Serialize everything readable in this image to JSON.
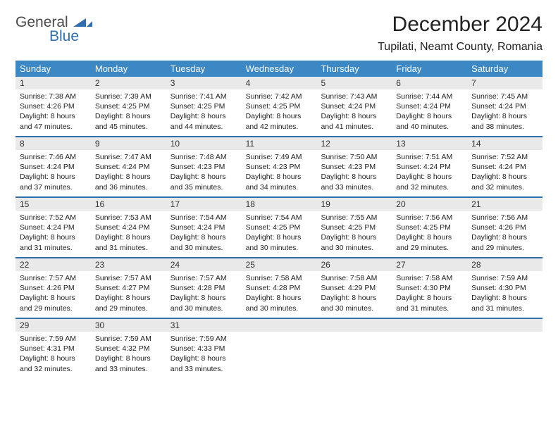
{
  "logo": {
    "general": "General",
    "blue": "Blue"
  },
  "title": "December 2024",
  "location": "Tupilati, Neamt County, Romania",
  "colors": {
    "header_bg": "#3b88c4",
    "border": "#2f6fb0",
    "daynum_bg": "#e9e9e9",
    "text": "#222222",
    "logo_gray": "#4a4a4a",
    "logo_blue": "#2f6fb0"
  },
  "weekdays": [
    "Sunday",
    "Monday",
    "Tuesday",
    "Wednesday",
    "Thursday",
    "Friday",
    "Saturday"
  ],
  "weeks": [
    [
      {
        "n": "1",
        "sr": "Sunrise: 7:38 AM",
        "ss": "Sunset: 4:26 PM",
        "d1": "Daylight: 8 hours",
        "d2": "and 47 minutes."
      },
      {
        "n": "2",
        "sr": "Sunrise: 7:39 AM",
        "ss": "Sunset: 4:25 PM",
        "d1": "Daylight: 8 hours",
        "d2": "and 45 minutes."
      },
      {
        "n": "3",
        "sr": "Sunrise: 7:41 AM",
        "ss": "Sunset: 4:25 PM",
        "d1": "Daylight: 8 hours",
        "d2": "and 44 minutes."
      },
      {
        "n": "4",
        "sr": "Sunrise: 7:42 AM",
        "ss": "Sunset: 4:25 PM",
        "d1": "Daylight: 8 hours",
        "d2": "and 42 minutes."
      },
      {
        "n": "5",
        "sr": "Sunrise: 7:43 AM",
        "ss": "Sunset: 4:24 PM",
        "d1": "Daylight: 8 hours",
        "d2": "and 41 minutes."
      },
      {
        "n": "6",
        "sr": "Sunrise: 7:44 AM",
        "ss": "Sunset: 4:24 PM",
        "d1": "Daylight: 8 hours",
        "d2": "and 40 minutes."
      },
      {
        "n": "7",
        "sr": "Sunrise: 7:45 AM",
        "ss": "Sunset: 4:24 PM",
        "d1": "Daylight: 8 hours",
        "d2": "and 38 minutes."
      }
    ],
    [
      {
        "n": "8",
        "sr": "Sunrise: 7:46 AM",
        "ss": "Sunset: 4:24 PM",
        "d1": "Daylight: 8 hours",
        "d2": "and 37 minutes."
      },
      {
        "n": "9",
        "sr": "Sunrise: 7:47 AM",
        "ss": "Sunset: 4:24 PM",
        "d1": "Daylight: 8 hours",
        "d2": "and 36 minutes."
      },
      {
        "n": "10",
        "sr": "Sunrise: 7:48 AM",
        "ss": "Sunset: 4:23 PM",
        "d1": "Daylight: 8 hours",
        "d2": "and 35 minutes."
      },
      {
        "n": "11",
        "sr": "Sunrise: 7:49 AM",
        "ss": "Sunset: 4:23 PM",
        "d1": "Daylight: 8 hours",
        "d2": "and 34 minutes."
      },
      {
        "n": "12",
        "sr": "Sunrise: 7:50 AM",
        "ss": "Sunset: 4:23 PM",
        "d1": "Daylight: 8 hours",
        "d2": "and 33 minutes."
      },
      {
        "n": "13",
        "sr": "Sunrise: 7:51 AM",
        "ss": "Sunset: 4:24 PM",
        "d1": "Daylight: 8 hours",
        "d2": "and 32 minutes."
      },
      {
        "n": "14",
        "sr": "Sunrise: 7:52 AM",
        "ss": "Sunset: 4:24 PM",
        "d1": "Daylight: 8 hours",
        "d2": "and 32 minutes."
      }
    ],
    [
      {
        "n": "15",
        "sr": "Sunrise: 7:52 AM",
        "ss": "Sunset: 4:24 PM",
        "d1": "Daylight: 8 hours",
        "d2": "and 31 minutes."
      },
      {
        "n": "16",
        "sr": "Sunrise: 7:53 AM",
        "ss": "Sunset: 4:24 PM",
        "d1": "Daylight: 8 hours",
        "d2": "and 31 minutes."
      },
      {
        "n": "17",
        "sr": "Sunrise: 7:54 AM",
        "ss": "Sunset: 4:24 PM",
        "d1": "Daylight: 8 hours",
        "d2": "and 30 minutes."
      },
      {
        "n": "18",
        "sr": "Sunrise: 7:54 AM",
        "ss": "Sunset: 4:25 PM",
        "d1": "Daylight: 8 hours",
        "d2": "and 30 minutes."
      },
      {
        "n": "19",
        "sr": "Sunrise: 7:55 AM",
        "ss": "Sunset: 4:25 PM",
        "d1": "Daylight: 8 hours",
        "d2": "and 30 minutes."
      },
      {
        "n": "20",
        "sr": "Sunrise: 7:56 AM",
        "ss": "Sunset: 4:25 PM",
        "d1": "Daylight: 8 hours",
        "d2": "and 29 minutes."
      },
      {
        "n": "21",
        "sr": "Sunrise: 7:56 AM",
        "ss": "Sunset: 4:26 PM",
        "d1": "Daylight: 8 hours",
        "d2": "and 29 minutes."
      }
    ],
    [
      {
        "n": "22",
        "sr": "Sunrise: 7:57 AM",
        "ss": "Sunset: 4:26 PM",
        "d1": "Daylight: 8 hours",
        "d2": "and 29 minutes."
      },
      {
        "n": "23",
        "sr": "Sunrise: 7:57 AM",
        "ss": "Sunset: 4:27 PM",
        "d1": "Daylight: 8 hours",
        "d2": "and 29 minutes."
      },
      {
        "n": "24",
        "sr": "Sunrise: 7:57 AM",
        "ss": "Sunset: 4:28 PM",
        "d1": "Daylight: 8 hours",
        "d2": "and 30 minutes."
      },
      {
        "n": "25",
        "sr": "Sunrise: 7:58 AM",
        "ss": "Sunset: 4:28 PM",
        "d1": "Daylight: 8 hours",
        "d2": "and 30 minutes."
      },
      {
        "n": "26",
        "sr": "Sunrise: 7:58 AM",
        "ss": "Sunset: 4:29 PM",
        "d1": "Daylight: 8 hours",
        "d2": "and 30 minutes."
      },
      {
        "n": "27",
        "sr": "Sunrise: 7:58 AM",
        "ss": "Sunset: 4:30 PM",
        "d1": "Daylight: 8 hours",
        "d2": "and 31 minutes."
      },
      {
        "n": "28",
        "sr": "Sunrise: 7:59 AM",
        "ss": "Sunset: 4:30 PM",
        "d1": "Daylight: 8 hours",
        "d2": "and 31 minutes."
      }
    ],
    [
      {
        "n": "29",
        "sr": "Sunrise: 7:59 AM",
        "ss": "Sunset: 4:31 PM",
        "d1": "Daylight: 8 hours",
        "d2": "and 32 minutes."
      },
      {
        "n": "30",
        "sr": "Sunrise: 7:59 AM",
        "ss": "Sunset: 4:32 PM",
        "d1": "Daylight: 8 hours",
        "d2": "and 33 minutes."
      },
      {
        "n": "31",
        "sr": "Sunrise: 7:59 AM",
        "ss": "Sunset: 4:33 PM",
        "d1": "Daylight: 8 hours",
        "d2": "and 33 minutes."
      },
      {
        "empty": true
      },
      {
        "empty": true
      },
      {
        "empty": true
      },
      {
        "empty": true
      }
    ]
  ]
}
